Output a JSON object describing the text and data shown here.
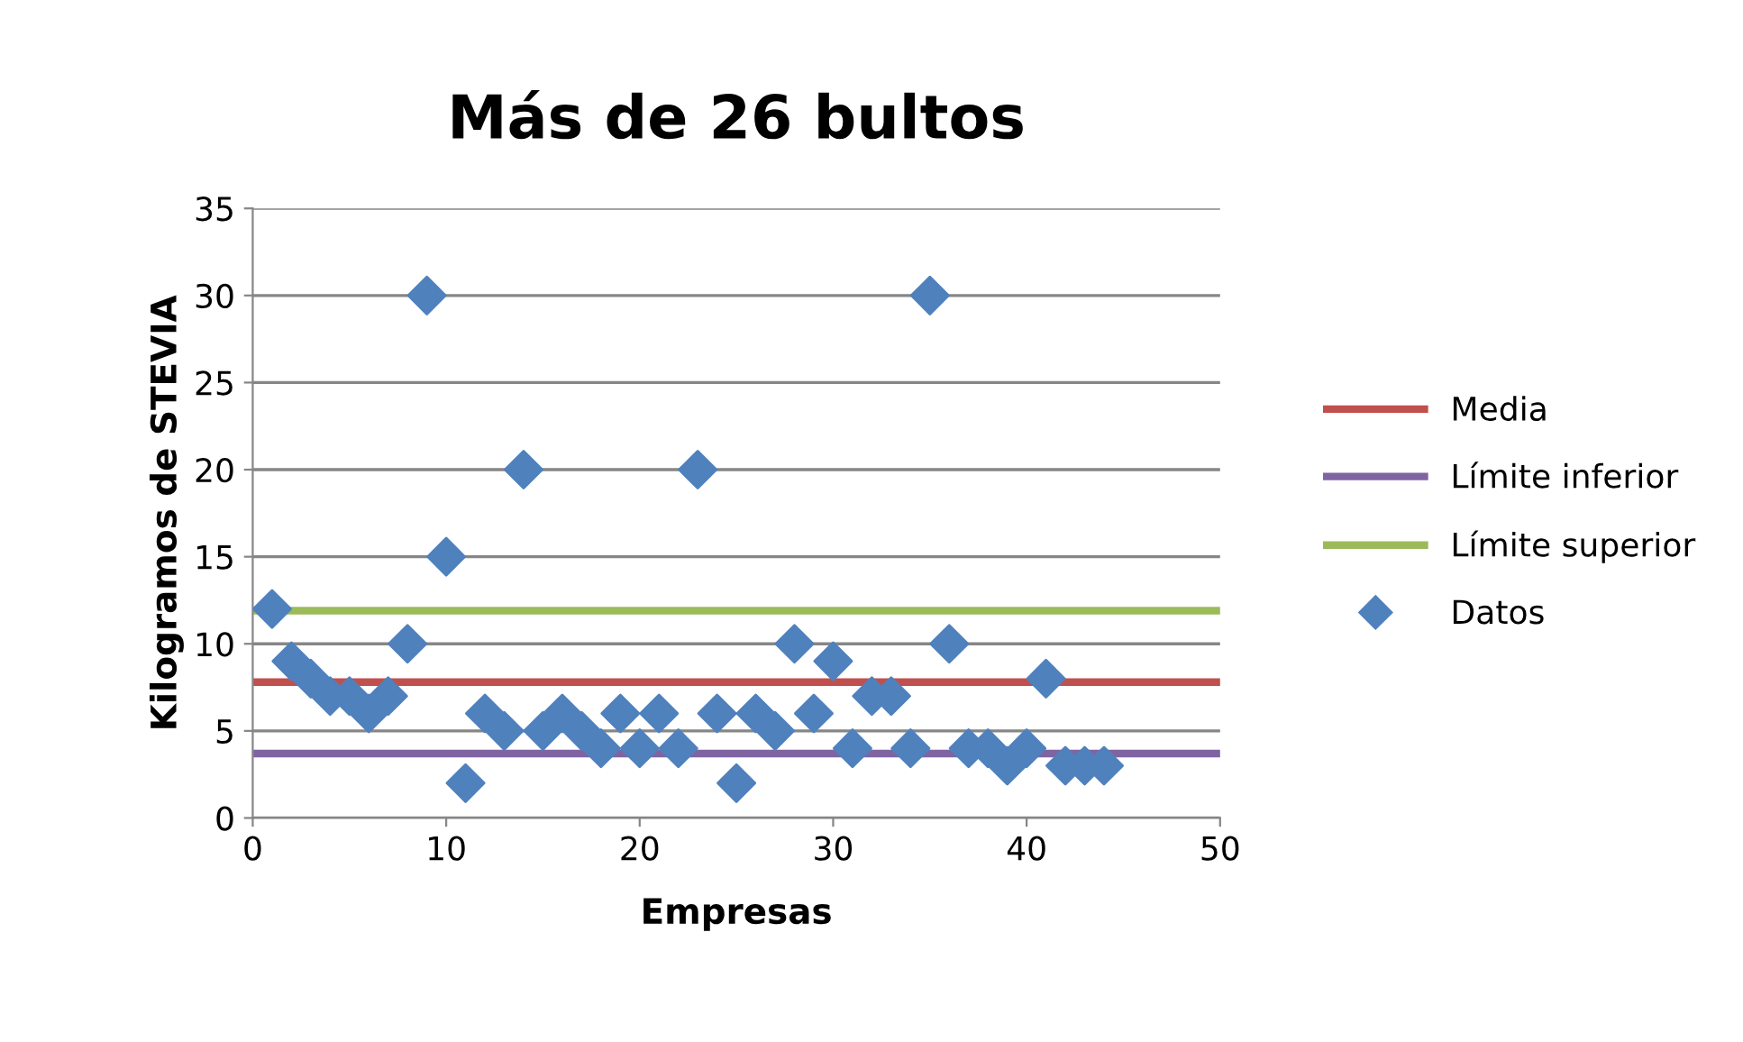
{
  "chart_data": {
    "type": "scatter",
    "title": "Más de 26 bultos",
    "xlabel": "Empresas",
    "ylabel": "Kilogramos de STEVIA",
    "x": [
      1,
      2,
      3,
      4,
      5,
      6,
      7,
      8,
      9,
      10,
      11,
      12,
      13,
      14,
      15,
      16,
      17,
      18,
      19,
      20,
      21,
      22,
      23,
      24,
      25,
      26,
      27,
      28,
      29,
      30,
      31,
      32,
      33,
      34,
      35,
      36,
      37,
      38,
      39,
      40,
      41,
      42,
      43,
      44
    ],
    "series": [
      {
        "name": "Datos",
        "color": "#4f81bd",
        "values": [
          12,
          9,
          8,
          7,
          7,
          6,
          7,
          10,
          30,
          15,
          2,
          6,
          5,
          20,
          5,
          6,
          5,
          4,
          6,
          4,
          6,
          4,
          20,
          6,
          2,
          6,
          5,
          10,
          6,
          9,
          4,
          7,
          7,
          4,
          30,
          10,
          4,
          4,
          3,
          4,
          8,
          3,
          3,
          3
        ]
      }
    ],
    "ref_lines": [
      {
        "axis": "y",
        "value": 7.8,
        "label": "Media",
        "color": "#c0504d"
      },
      {
        "axis": "y",
        "value": 3.7,
        "label": "Límite inferior",
        "color": "#8064a2"
      },
      {
        "axis": "y",
        "value": 11.9,
        "label": "Límite superior",
        "color": "#9bbb59"
      }
    ],
    "xlim": [
      0,
      50
    ],
    "xticks": [
      0,
      10,
      20,
      30,
      40,
      50
    ],
    "ylim": [
      0,
      35
    ],
    "yticks": [
      0,
      5,
      10,
      15,
      20,
      25,
      30,
      35
    ],
    "grid": "y",
    "legend": "right",
    "marker": "diamond"
  }
}
